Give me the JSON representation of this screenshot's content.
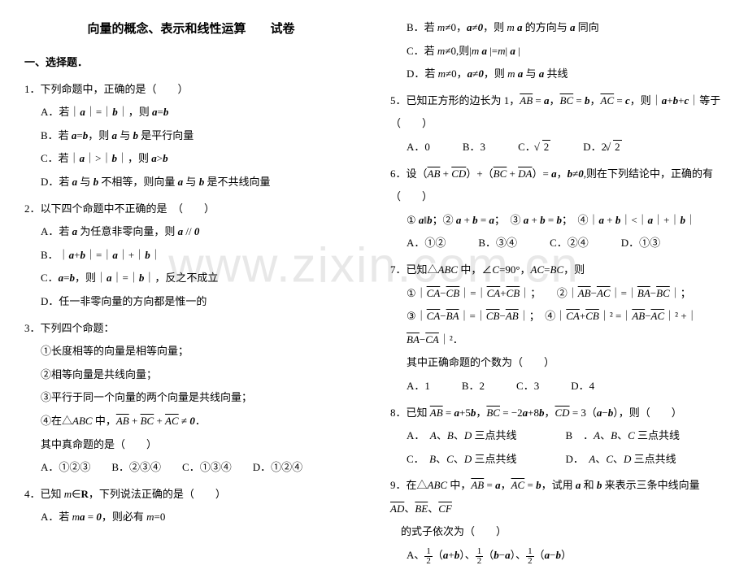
{
  "watermark": "www.zixin.com.cn",
  "title": "向量的概念、表示和线性运算　　试卷",
  "section1": "一、选择题．",
  "left": {
    "q1": {
      "stem": "1．下列命题中，正确的是（　　）",
      "a": "A．若｜a｜=｜b｜，则 a=b",
      "b": "B．若 a=b，则 a 与 b 是平行向量",
      "c": "C．若｜a｜>｜b｜，则 a>b",
      "d": "D．若 a 与 b 不相等，则向量 a 与 b 是不共线向量"
    },
    "q2": {
      "stem": "2．以下四个命题中不正确的是　（　　）",
      "a": "A．若 a 为任意非零向量，则 a // 0",
      "b": "B．｜a+b｜=｜a｜+｜b｜",
      "c": "C．a=b，则｜a｜=｜b｜，反之不成立",
      "d": "D．任一非零向量的方向都是惟一的"
    },
    "q3": {
      "stem": "3．下列四个命题：",
      "s1": "①长度相等的向量是相等向量；",
      "s2": "②相等向量是共线向量；",
      "s3": "③平行于同一个向量的两个向量是共线向量；",
      "s4": "④在△ABC 中，AB + BC + AC ≠ 0．",
      "tail": "其中真命题的是（　　）",
      "opts": "A．①②③　　B．②③④　　C．①③④　　D．①②④"
    },
    "q4": {
      "stem": "4．已知 m∈R，下列说法正确的是（　　）",
      "a": "A．若 ma = 0，则必有 m=0"
    }
  },
  "right": {
    "q4": {
      "b": "B．若 m≠0，a≠0，则 m a 的方向与 a 同向",
      "c": "C．若 m≠0,则|m a|=m| a |",
      "d": "D．若 m≠0，a≠0，则 m a 与 a 共线"
    },
    "q5": {
      "stem": "5．已知正方形的边长为 1，AB = a，BC = b，AC = c，则 | a+b+c | 等于（　　）",
      "a": "A．0",
      "b": "B．3",
      "c": "C．√2",
      "d": "D．2√2"
    },
    "q6": {
      "stem": "6．设（AB + CD）+（BC + DA）= a，b≠0,则在下列结论中，正确的有（　　）",
      "sub": "① a‖b；② a + b = a；③ a + b = b；④｜a + b｜<｜a｜+｜b｜",
      "a": "A．①②",
      "b": "B．③④",
      "c": "C．②④",
      "d": "D．①③"
    },
    "q7": {
      "stem": "7．已知△ABC 中，∠C=90°，AC=BC，则",
      "s1": "①｜CA−CB｜=｜CA+CB｜；　　　②｜AB−AC｜=｜BA−BC｜；",
      "s2": "③｜CA−BA｜=｜CB−AB｜；　　④｜CA+CB｜² =｜AB−AC｜² +｜BA−CA｜²．",
      "tail": "其中正确命题的个数为（　　）",
      "opts": "A．1　　　B．2　　　C．3　　　D．4"
    },
    "q8": {
      "stem": "8．已知 AB = a+5b，BC = −2a+8b，CD = 3（a−b），则（　　）",
      "a": "A．　A、B、D 三点共线",
      "b": "B　．A、B、C 三点共线",
      "c": "C．　B、C、D 三点共线",
      "d": "D．　A、C、D 三点共线"
    },
    "q9": {
      "stem": "9．在△ABC 中，AB = a，AC = b，试用 a 和 b 来表示三条中线向量 AD、BE、CF",
      "stem2": "　的式子依次为（　　）",
      "a": "A、½（a+b）、½（b−a）、½（a−b）"
    }
  }
}
